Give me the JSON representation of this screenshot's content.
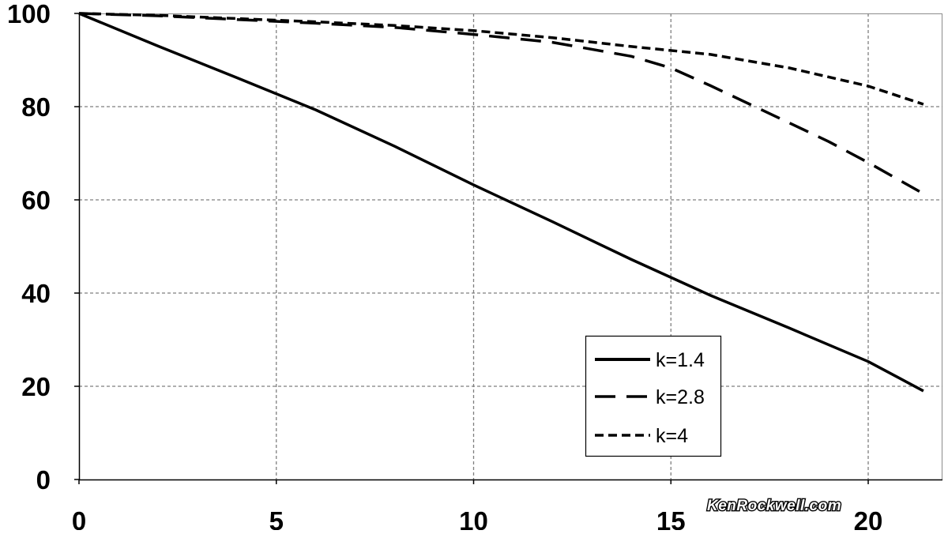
{
  "watermark": "KenRockwell.com",
  "chart_data": {
    "type": "line",
    "title": "",
    "xlabel": "",
    "ylabel": "",
    "xlim": [
      0,
      22
    ],
    "ylim": [
      0,
      100
    ],
    "x_ticks": [
      0,
      5,
      10,
      15,
      20
    ],
    "y_ticks": [
      0,
      20,
      40,
      60,
      80,
      100
    ],
    "grid": true,
    "legend_position": "lower-right",
    "series": [
      {
        "name": "k=1.4",
        "style": "solid",
        "points": [
          [
            0,
            100
          ],
          [
            2,
            93
          ],
          [
            4,
            86.2
          ],
          [
            6,
            79.3
          ],
          [
            8,
            71.5
          ],
          [
            10,
            63.2
          ],
          [
            12,
            55.3
          ],
          [
            14,
            47.2
          ],
          [
            16,
            39.5
          ],
          [
            18,
            32.5
          ],
          [
            20,
            25.3
          ],
          [
            21.4,
            19
          ]
        ]
      },
      {
        "name": "k=2.8",
        "style": "dashed",
        "points": [
          [
            0,
            100
          ],
          [
            2,
            99.5
          ],
          [
            4,
            98.7
          ],
          [
            6,
            97.9
          ],
          [
            8,
            97
          ],
          [
            10,
            95.5
          ],
          [
            12,
            93.8
          ],
          [
            14,
            90.8
          ],
          [
            15,
            88.3
          ],
          [
            16,
            84.5
          ],
          [
            17,
            80.5
          ],
          [
            18,
            76.5
          ],
          [
            19,
            72.5
          ],
          [
            20,
            68
          ],
          [
            21.3,
            61.8
          ]
        ]
      },
      {
        "name": "k=4",
        "style": "dotted",
        "points": [
          [
            0,
            100
          ],
          [
            2,
            99.6
          ],
          [
            4,
            98.9
          ],
          [
            6,
            98.2
          ],
          [
            8,
            97.4
          ],
          [
            10,
            96.3
          ],
          [
            12,
            94.8
          ],
          [
            14,
            92.9
          ],
          [
            16,
            91.2
          ],
          [
            18,
            88.3
          ],
          [
            20,
            84.4
          ],
          [
            21.4,
            80.5
          ]
        ]
      }
    ]
  }
}
